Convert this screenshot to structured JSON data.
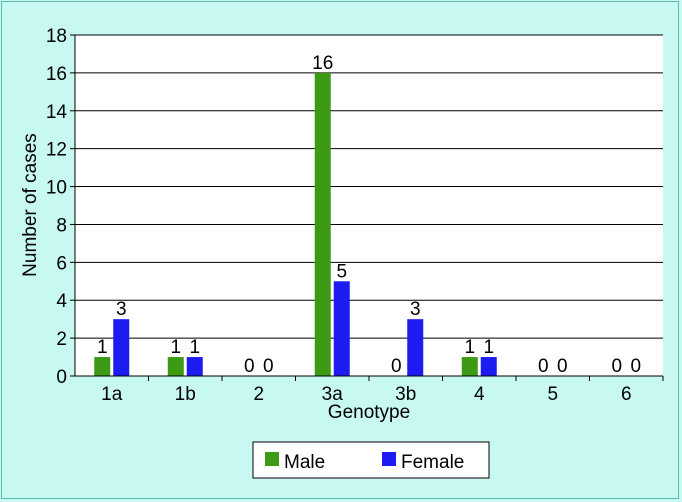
{
  "chart_data": {
    "type": "bar",
    "title": "",
    "xlabel": "Genotype",
    "ylabel": "Number of cases",
    "ylim": [
      0,
      18
    ],
    "yticks": [
      0,
      2,
      4,
      6,
      8,
      10,
      12,
      14,
      16,
      18
    ],
    "grid": true,
    "legend_position": "bottom",
    "categories": [
      "1a",
      "1b",
      "2",
      "3a",
      "3b",
      "4",
      "5",
      "6"
    ],
    "series": [
      {
        "name": "Male",
        "color": "#3c9a14",
        "values": [
          1,
          1,
          0,
          16,
          0,
          1,
          0,
          0
        ]
      },
      {
        "name": "Female",
        "color": "#1c1cf2",
        "values": [
          3,
          1,
          0,
          5,
          3,
          1,
          0,
          0
        ]
      }
    ]
  }
}
